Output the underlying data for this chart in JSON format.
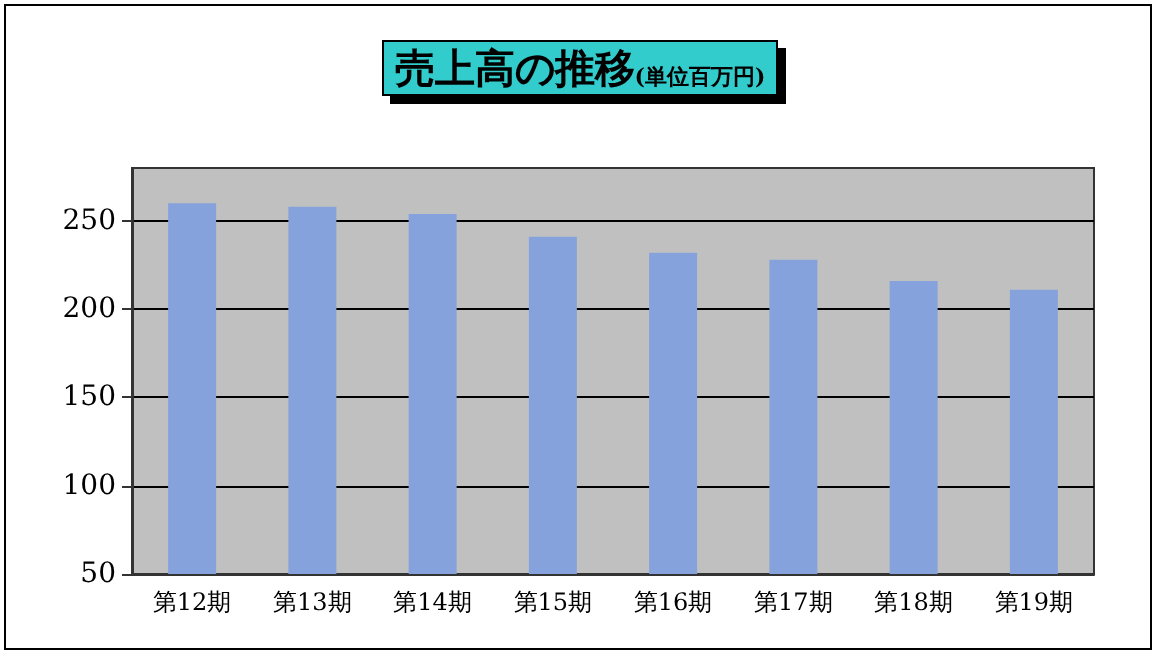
{
  "chart_data": {
    "type": "bar",
    "title": "売上高の推移",
    "subtitle": "(単位百万円)",
    "categories": [
      "第12期",
      "第13期",
      "第14期",
      "第15期",
      "第16期",
      "第17期",
      "第18期",
      "第19期"
    ],
    "values": [
      260,
      258,
      254,
      241,
      232,
      228,
      216,
      211
    ],
    "color": "#86a2dc",
    "ylim": [
      50,
      280
    ],
    "yticks": [
      50,
      100,
      150,
      200,
      250
    ],
    "grid": "y"
  }
}
